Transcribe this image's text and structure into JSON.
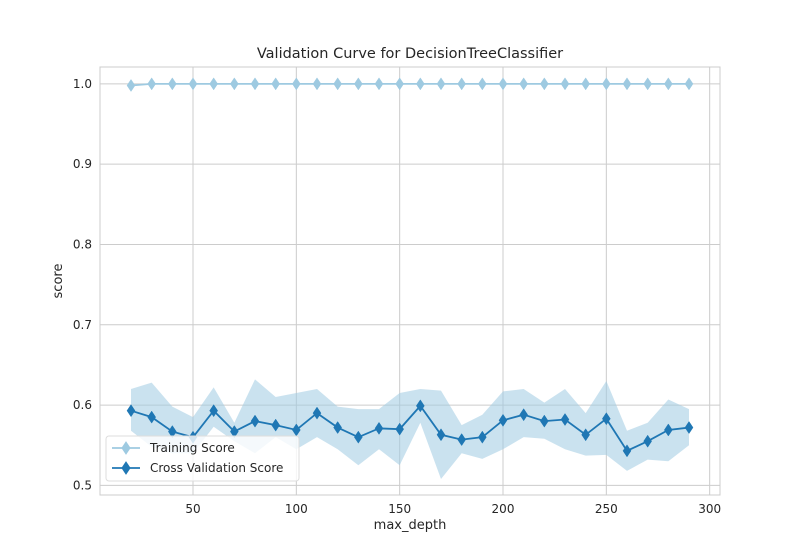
{
  "chart_data": {
    "type": "line",
    "title": "Validation Curve for DecisionTreeClassifier",
    "xlabel": "max_depth",
    "ylabel": "score",
    "xlim": [
      5,
      305
    ],
    "ylim": [
      0.488,
      1.021
    ],
    "xticks": [
      50,
      100,
      150,
      200,
      250,
      300
    ],
    "yticks": [
      0.5,
      0.6,
      0.7,
      0.8,
      0.9,
      1.0
    ],
    "grid": true,
    "legend_position": "lower-left",
    "x": [
      20,
      30,
      40,
      50,
      60,
      70,
      80,
      90,
      100,
      110,
      120,
      130,
      140,
      150,
      160,
      170,
      180,
      190,
      200,
      210,
      220,
      230,
      240,
      250,
      260,
      270,
      280,
      290
    ],
    "series": [
      {
        "name": "Training Score",
        "color": "#9ecae1",
        "marker": "diamond",
        "values": [
          0.998,
          1.0,
          1.0,
          1.0,
          1.0,
          1.0,
          1.0,
          1.0,
          1.0,
          1.0,
          1.0,
          1.0,
          1.0,
          1.0,
          1.0,
          1.0,
          1.0,
          1.0,
          1.0,
          1.0,
          1.0,
          1.0,
          1.0,
          1.0,
          1.0,
          1.0,
          1.0,
          1.0
        ],
        "lower": [
          0.997,
          1.0,
          1.0,
          1.0,
          1.0,
          1.0,
          1.0,
          1.0,
          1.0,
          1.0,
          1.0,
          1.0,
          1.0,
          1.0,
          1.0,
          1.0,
          1.0,
          1.0,
          1.0,
          1.0,
          1.0,
          1.0,
          1.0,
          1.0,
          1.0,
          1.0,
          1.0,
          1.0
        ],
        "upper": [
          0.999,
          1.0,
          1.0,
          1.0,
          1.0,
          1.0,
          1.0,
          1.0,
          1.0,
          1.0,
          1.0,
          1.0,
          1.0,
          1.0,
          1.0,
          1.0,
          1.0,
          1.0,
          1.0,
          1.0,
          1.0,
          1.0,
          1.0,
          1.0,
          1.0,
          1.0,
          1.0,
          1.0
        ]
      },
      {
        "name": "Cross Validation Score",
        "color": "#1f77b4",
        "band_color": "#9ecae1",
        "marker": "diamond",
        "values": [
          0.593,
          0.585,
          0.567,
          0.56,
          0.593,
          0.567,
          0.58,
          0.575,
          0.569,
          0.59,
          0.572,
          0.56,
          0.571,
          0.57,
          0.599,
          0.563,
          0.557,
          0.56,
          0.581,
          0.588,
          0.58,
          0.582,
          0.563,
          0.583,
          0.543,
          0.555,
          0.569,
          0.572
        ],
        "lower": [
          0.568,
          0.548,
          0.54,
          0.54,
          0.573,
          0.555,
          0.54,
          0.56,
          0.545,
          0.56,
          0.545,
          0.525,
          0.545,
          0.525,
          0.578,
          0.508,
          0.54,
          0.533,
          0.545,
          0.56,
          0.558,
          0.545,
          0.537,
          0.538,
          0.518,
          0.532,
          0.53,
          0.55
        ],
        "upper": [
          0.62,
          0.628,
          0.598,
          0.585,
          0.622,
          0.578,
          0.632,
          0.61,
          0.615,
          0.62,
          0.598,
          0.595,
          0.595,
          0.615,
          0.62,
          0.618,
          0.575,
          0.588,
          0.617,
          0.62,
          0.603,
          0.62,
          0.59,
          0.63,
          0.568,
          0.578,
          0.607,
          0.595
        ]
      }
    ]
  }
}
